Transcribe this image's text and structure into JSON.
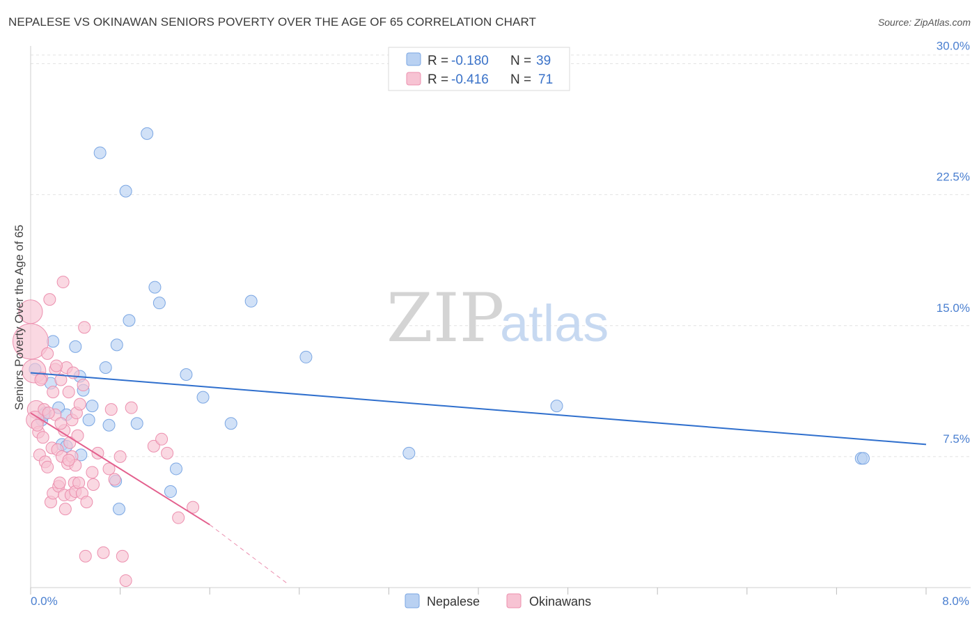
{
  "title": "NEPALESE VS OKINAWAN SENIORS POVERTY OVER THE AGE OF 65 CORRELATION CHART",
  "source": "Source: ZipAtlas.com",
  "watermark": {
    "zip": "ZIP",
    "atlas": "atlas"
  },
  "colors": {
    "blue_fill": "#b9d1f2",
    "blue_stroke": "#7aa6e3",
    "blue_line": "#2f6fcd",
    "pink_fill": "#f7c3d3",
    "pink_stroke": "#ec8fae",
    "pink_line": "#e35f8d",
    "grid": "#e2e2e2",
    "tick_text": "#4a7fd0"
  },
  "legend": {
    "rows": [
      {
        "r_label": "R =",
        "r_value": "-0.180",
        "n_label": "N =",
        "n_value": "39"
      },
      {
        "r_label": "R =",
        "r_value": "-0.416",
        "n_label": "N =",
        "n_value": "71"
      }
    ]
  },
  "chart_data": {
    "type": "scatter",
    "title": "NEPALESE VS OKINAWAN SENIORS POVERTY OVER THE AGE OF 65 CORRELATION CHART",
    "xlabel": "",
    "ylabel": "Seniors Poverty Over the Age of 65",
    "xlim": [
      0,
      8
    ],
    "ylim": [
      0,
      30.5
    ],
    "x_tick_labels": [
      "0.0%",
      "8.0%"
    ],
    "y_ticks": [
      7.5,
      15.0,
      22.5,
      30.0
    ],
    "y_tick_labels": [
      "7.5%",
      "15.0%",
      "22.5%",
      "30.0%"
    ],
    "grid": true,
    "series": [
      {
        "name": "Nepalese",
        "color": "blue",
        "trend": {
          "x0": 0.0,
          "y0": 12.3,
          "x1": 8.0,
          "y1": 8.2
        },
        "points": [
          [
            0.04,
            12.5,
            1
          ],
          [
            0.1,
            9.6,
            1
          ],
          [
            0.13,
            10.0,
            1
          ],
          [
            0.18,
            11.7,
            1
          ],
          [
            0.2,
            14.1,
            1
          ],
          [
            0.25,
            10.3,
            1
          ],
          [
            0.28,
            8.2,
            1
          ],
          [
            0.32,
            9.9,
            1
          ],
          [
            0.4,
            13.8,
            1
          ],
          [
            0.44,
            12.1,
            1
          ],
          [
            0.47,
            11.3,
            1
          ],
          [
            0.52,
            9.6,
            1
          ],
          [
            0.55,
            10.4,
            1
          ],
          [
            0.62,
            24.9,
            1
          ],
          [
            0.67,
            12.6,
            1
          ],
          [
            0.7,
            9.3,
            1
          ],
          [
            0.76,
            6.1,
            1
          ],
          [
            0.77,
            13.9,
            1
          ],
          [
            0.79,
            4.5,
            1
          ],
          [
            0.85,
            22.7,
            1
          ],
          [
            0.88,
            15.3,
            1
          ],
          [
            0.95,
            9.4,
            1
          ],
          [
            1.04,
            26.0,
            1
          ],
          [
            1.11,
            17.2,
            1
          ],
          [
            1.15,
            16.3,
            1
          ],
          [
            1.25,
            5.5,
            1
          ],
          [
            1.3,
            6.8,
            1
          ],
          [
            1.39,
            12.2,
            1
          ],
          [
            1.54,
            10.9,
            1
          ],
          [
            1.79,
            9.4,
            1
          ],
          [
            1.97,
            16.4,
            1
          ],
          [
            2.46,
            13.2,
            1
          ],
          [
            3.38,
            7.7,
            1
          ],
          [
            4.7,
            10.4,
            1
          ],
          [
            7.42,
            7.4,
            1
          ],
          [
            7.44,
            7.4,
            1
          ],
          [
            0.45,
            7.6,
            1
          ],
          [
            0.32,
            8.1,
            1
          ],
          [
            0.12,
            9.9,
            1
          ]
        ]
      },
      {
        "name": "Okinawans",
        "color": "pink",
        "trend": {
          "x0": 0.0,
          "y0": 10.0,
          "x1": 1.6,
          "y1": 3.6,
          "dash_to_x": 2.3,
          "dash_to_y": 0.2
        },
        "points": [
          [
            0.0,
            14.1,
            3
          ],
          [
            0.0,
            15.8,
            2
          ],
          [
            0.03,
            12.4,
            2
          ],
          [
            0.05,
            10.2,
            1.5
          ],
          [
            0.04,
            9.6,
            1.5
          ],
          [
            0.07,
            8.9,
            1
          ],
          [
            0.08,
            7.6,
            1
          ],
          [
            0.1,
            12.0,
            1
          ],
          [
            0.12,
            10.2,
            1
          ],
          [
            0.13,
            7.2,
            1
          ],
          [
            0.15,
            6.9,
            1
          ],
          [
            0.15,
            13.4,
            1
          ],
          [
            0.17,
            16.5,
            1
          ],
          [
            0.18,
            4.9,
            1
          ],
          [
            0.19,
            8.0,
            1
          ],
          [
            0.2,
            5.4,
            1
          ],
          [
            0.2,
            11.2,
            1
          ],
          [
            0.22,
            12.5,
            1
          ],
          [
            0.22,
            9.9,
            1
          ],
          [
            0.24,
            7.9,
            1
          ],
          [
            0.25,
            5.8,
            1
          ],
          [
            0.26,
            6.0,
            1
          ],
          [
            0.27,
            11.9,
            1
          ],
          [
            0.28,
            7.5,
            1
          ],
          [
            0.29,
            17.5,
            1
          ],
          [
            0.3,
            5.3,
            1
          ],
          [
            0.3,
            9.0,
            1
          ],
          [
            0.31,
            4.5,
            1
          ],
          [
            0.32,
            12.6,
            1
          ],
          [
            0.33,
            7.1,
            1
          ],
          [
            0.34,
            11.2,
            1
          ],
          [
            0.35,
            8.3,
            1
          ],
          [
            0.36,
            5.3,
            1
          ],
          [
            0.37,
            7.5,
            1
          ],
          [
            0.37,
            9.6,
            1
          ],
          [
            0.38,
            12.3,
            1
          ],
          [
            0.39,
            6.0,
            1
          ],
          [
            0.4,
            7.0,
            1
          ],
          [
            0.4,
            5.5,
            1
          ],
          [
            0.41,
            10.0,
            1
          ],
          [
            0.42,
            8.7,
            1
          ],
          [
            0.43,
            6.0,
            1
          ],
          [
            0.44,
            10.5,
            1
          ],
          [
            0.46,
            5.4,
            1
          ],
          [
            0.47,
            11.6,
            1
          ],
          [
            0.48,
            14.9,
            1
          ],
          [
            0.5,
            4.9,
            1
          ],
          [
            0.49,
            1.8,
            1
          ],
          [
            0.55,
            6.6,
            1
          ],
          [
            0.56,
            5.9,
            1
          ],
          [
            0.6,
            7.7,
            1
          ],
          [
            0.65,
            2.0,
            1
          ],
          [
            0.7,
            6.8,
            1
          ],
          [
            0.72,
            10.2,
            1
          ],
          [
            0.75,
            6.2,
            1
          ],
          [
            0.8,
            7.5,
            1
          ],
          [
            0.82,
            1.8,
            1
          ],
          [
            0.85,
            0.4,
            1
          ],
          [
            0.9,
            10.3,
            1
          ],
          [
            1.1,
            8.1,
            1
          ],
          [
            1.17,
            8.5,
            1
          ],
          [
            1.22,
            7.7,
            1
          ],
          [
            1.32,
            4.0,
            1
          ],
          [
            1.45,
            4.6,
            1
          ],
          [
            0.16,
            10.0,
            1
          ],
          [
            0.06,
            9.3,
            1
          ],
          [
            0.27,
            9.4,
            1
          ],
          [
            0.11,
            8.6,
            1
          ],
          [
            0.23,
            12.7,
            1
          ],
          [
            0.34,
            7.3,
            1
          ],
          [
            0.09,
            11.9,
            1
          ]
        ]
      }
    ]
  },
  "bottom_legend": [
    "Nepalese",
    "Okinawans"
  ]
}
